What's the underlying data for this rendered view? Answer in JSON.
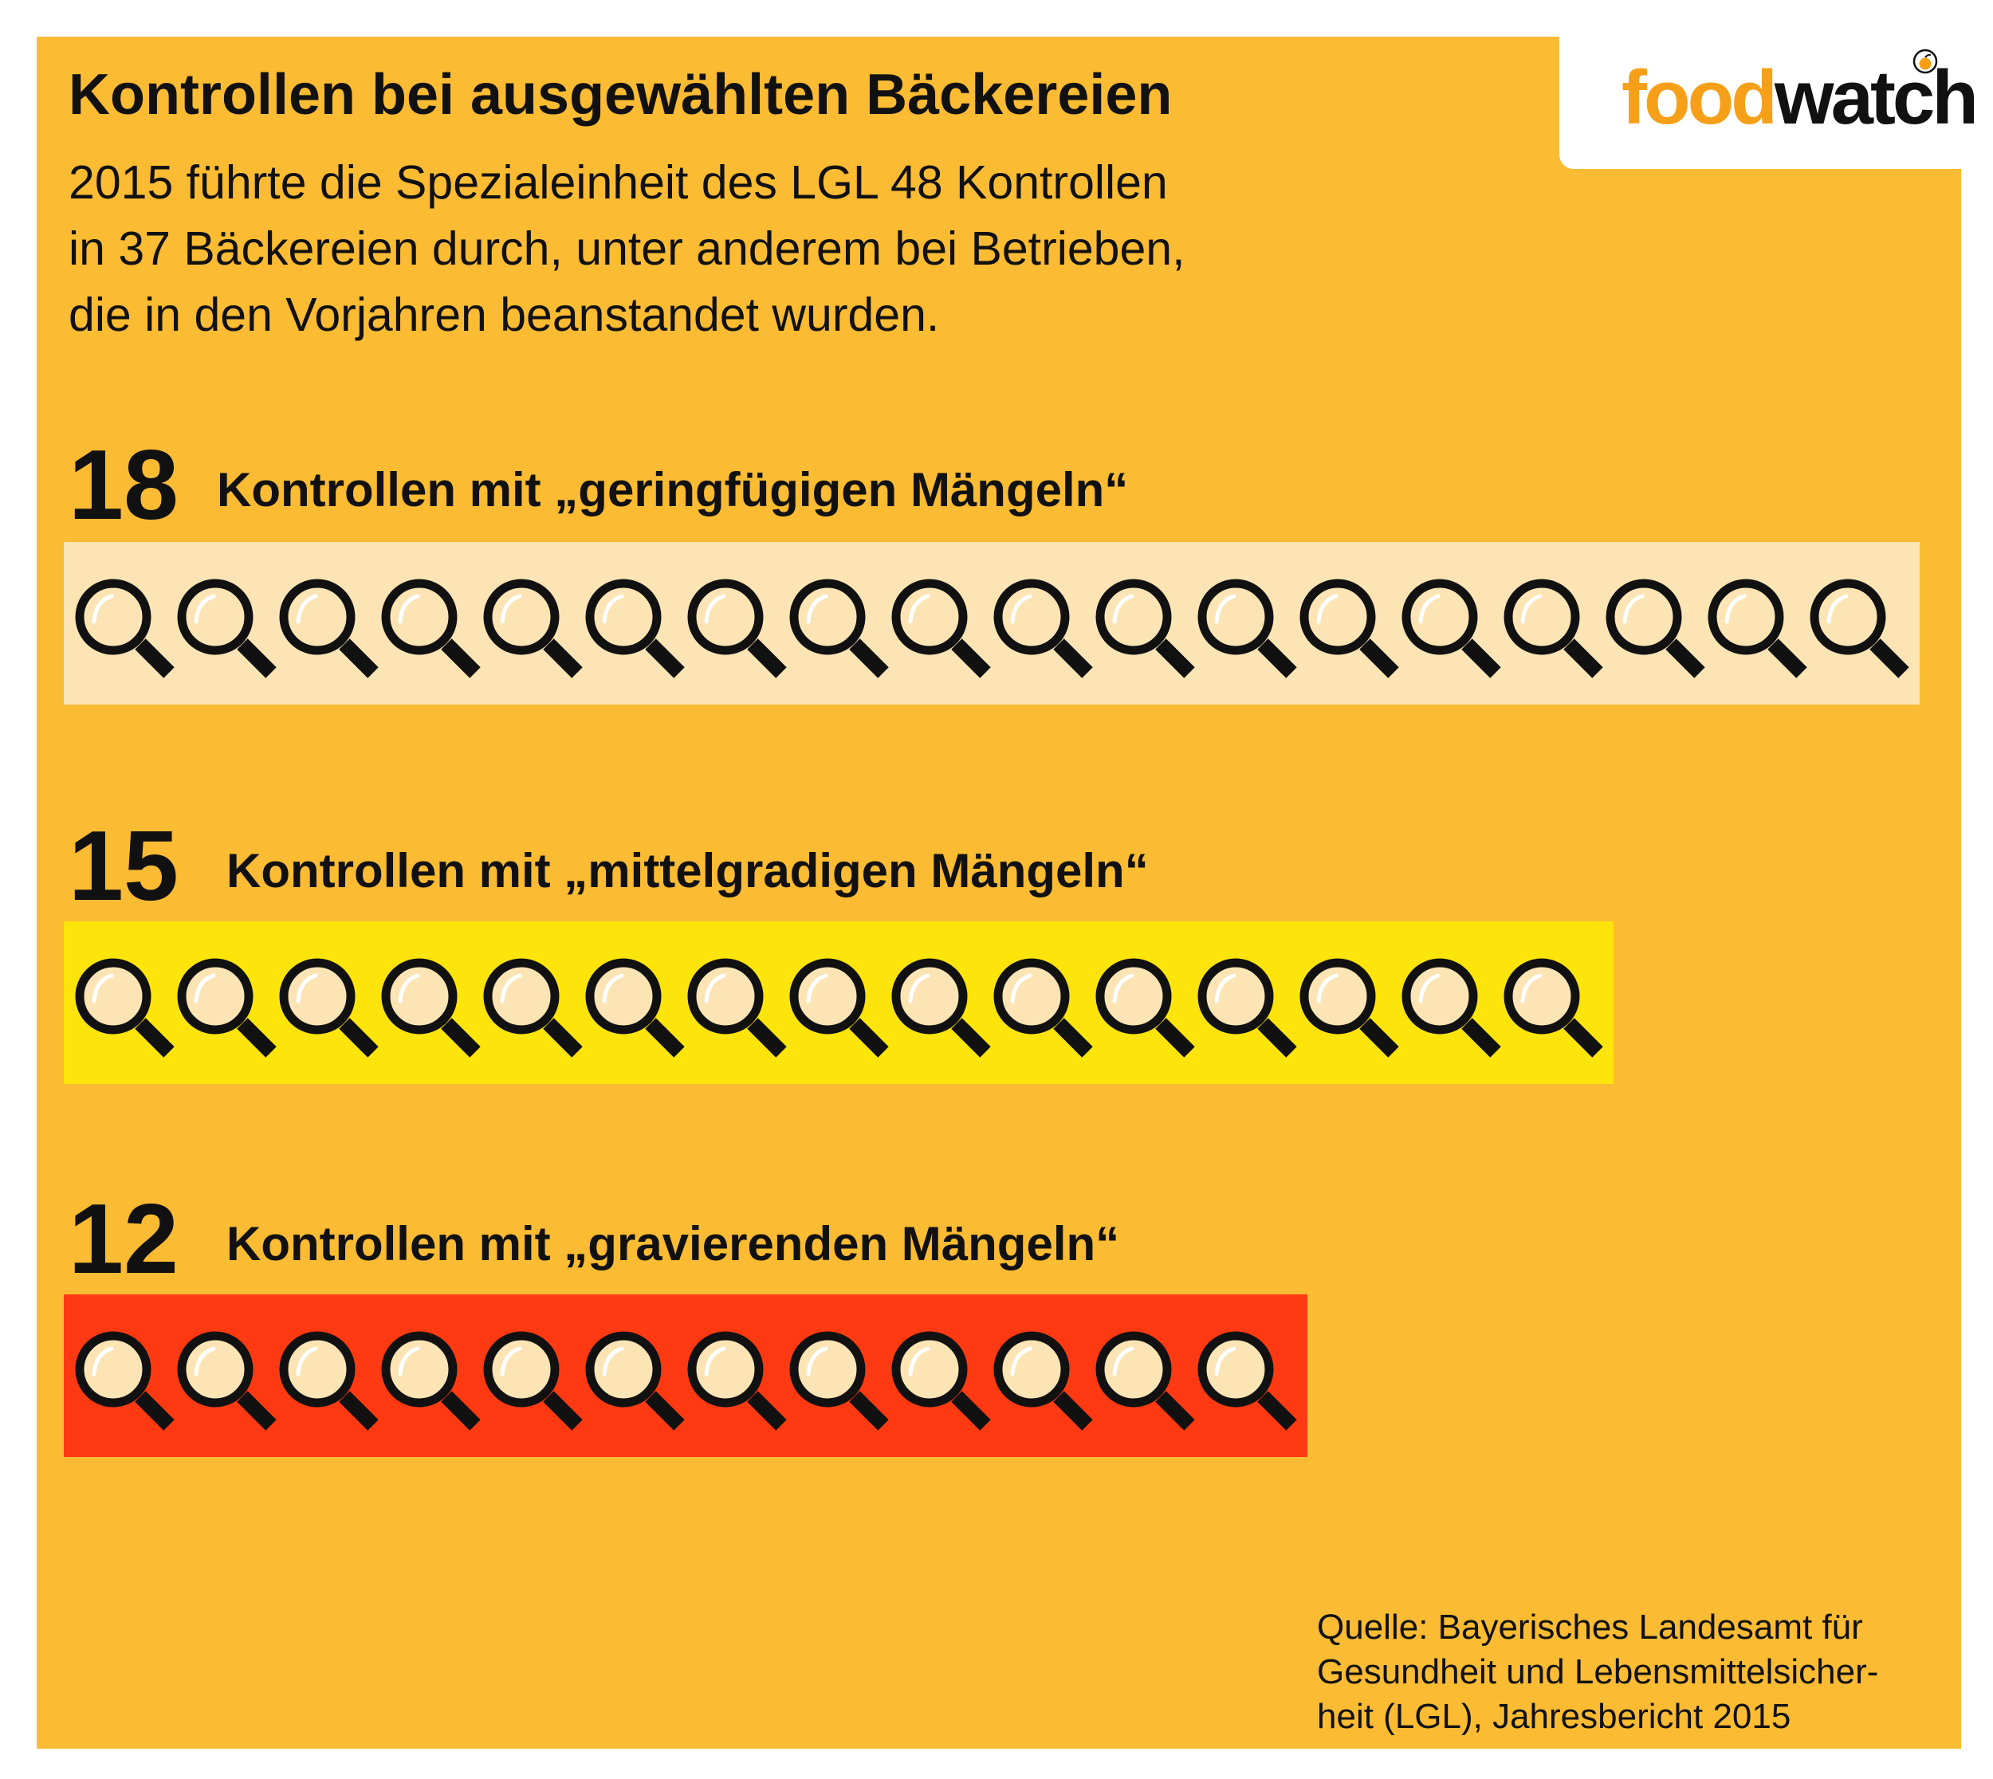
{
  "header": {
    "title": "Kontrollen bei ausgewählten Bäckereien",
    "intro_lines": [
      "2015 führte die Spezialeinheit des LGL 48 Kontrollen",
      "in 37 Bäckereien durch, unter anderem bei Betrieben,",
      "die in den Vorjahren beanstandet wurden."
    ]
  },
  "logo": {
    "part1": "food",
    "part2": "watch"
  },
  "chart_data": {
    "type": "bar",
    "categories": [
      "Kontrollen mit „geringfügigen Mängeln“",
      "Kontrollen mit „mittelgradigen Mängeln“",
      "Kontrollen mit „gravierenden Mängeln“"
    ],
    "values": [
      18,
      15,
      12
    ],
    "icon": "magnifier-icon",
    "colors": [
      "#fde4b4",
      "#fde40a",
      "#ff3a12"
    ]
  },
  "source": {
    "lines": [
      "Quelle: Bayerisches Landesamt für",
      "Gesundheit und Lebensmittelsicher-",
      "heit (LGL), Jahresbericht 2015"
    ]
  }
}
